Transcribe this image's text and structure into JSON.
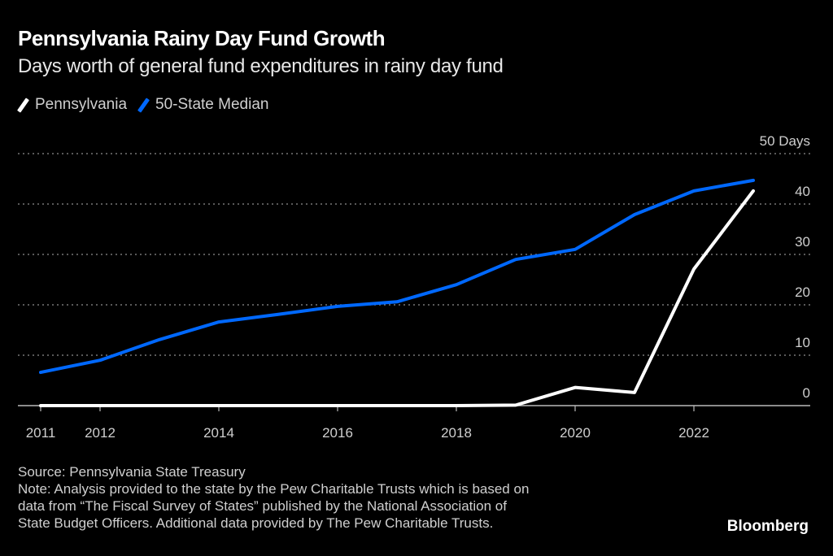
{
  "header": {
    "title": "Pennsylvania Rainy Day Fund Growth",
    "subtitle": "Days worth of general fund expenditures in rainy day fund"
  },
  "legend": [
    {
      "label": "Pennsylvania",
      "color": "#ffffff"
    },
    {
      "label": "50-State Median",
      "color": "#0068ff"
    }
  ],
  "footer": {
    "source": "Source: Pennsylvania State Treasury",
    "note_lines": [
      "Note: Analysis provided to the state by the Pew Charitable Trusts which is based on",
      "data from “The Fiscal Survey of States” published by the National Association of",
      "State Budget Officers. Additional data provided by The Pew Charitable Trusts."
    ],
    "brand": "Bloomberg"
  },
  "chart_data": {
    "type": "line",
    "title": "Pennsylvania Rainy Day Fund Growth",
    "subtitle": "Days worth of general fund expenditures in rainy day fund",
    "xlabel": "",
    "ylabel": "Days",
    "x": [
      2011,
      2012,
      2013,
      2014,
      2015,
      2016,
      2017,
      2018,
      2019,
      2020,
      2021,
      2022,
      2023
    ],
    "x_ticks": [
      "2011",
      "2012",
      "2014",
      "2016",
      "2018",
      "2020",
      "2022"
    ],
    "y_ticks": [
      0,
      10,
      20,
      30,
      40,
      50
    ],
    "y_tick_labels": [
      "0",
      "10",
      "20",
      "30",
      "40",
      "50 Days"
    ],
    "ylim": [
      0,
      50
    ],
    "xlim": [
      2011,
      2024
    ],
    "grid": true,
    "legend_position": "top-left",
    "series": [
      {
        "name": "Pennsylvania",
        "color": "#ffffff",
        "values": [
          0,
          0,
          0,
          0,
          0,
          0,
          0,
          0,
          0.1,
          3.6,
          2.6,
          27.1,
          42.6
        ]
      },
      {
        "name": "50-State Median",
        "color": "#0068ff",
        "values": [
          6.6,
          9.0,
          13.1,
          16.6,
          18.1,
          19.7,
          20.6,
          24.0,
          29.0,
          31.0,
          37.9,
          42.6,
          44.7
        ]
      }
    ]
  }
}
